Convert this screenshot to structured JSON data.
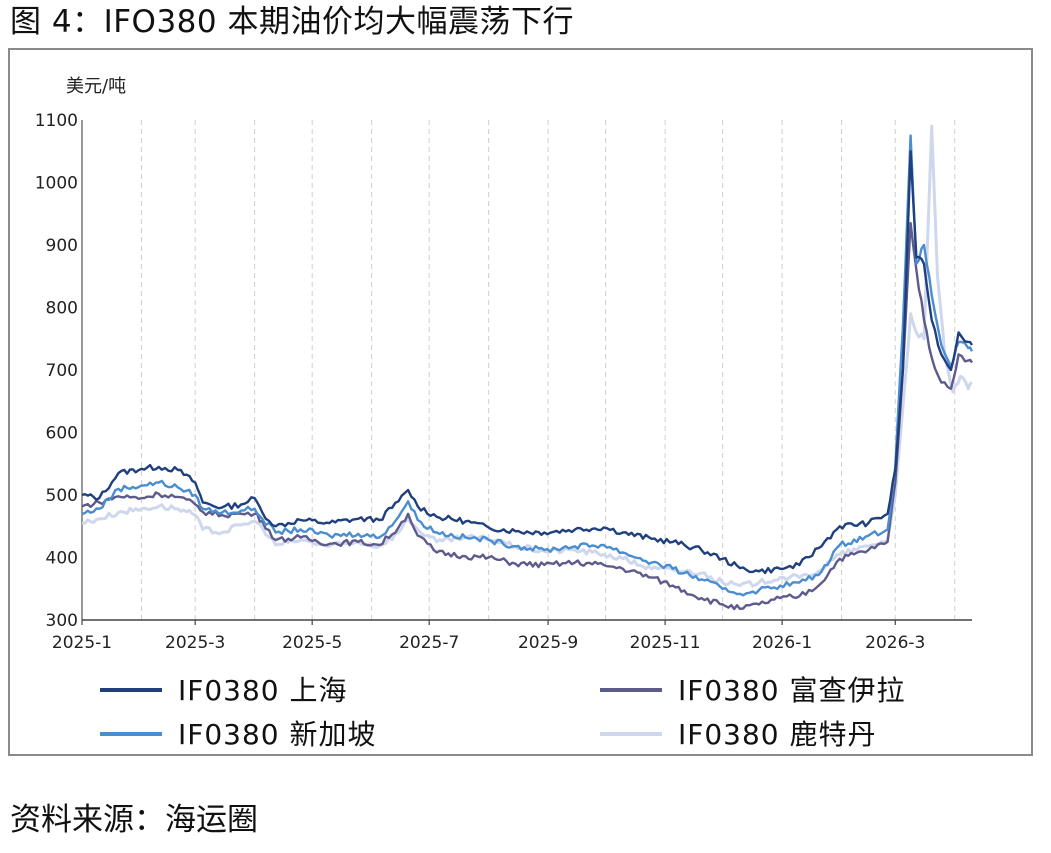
{
  "title": "图 4：IFO380 本期油价均大幅震荡下行",
  "source": "资料来源：海运圈",
  "chart_data": {
    "type": "line",
    "y_unit": "美元/吨",
    "ylim": [
      300,
      1100
    ],
    "y_ticks": [
      "300",
      "400",
      "500",
      "600",
      "700",
      "800",
      "900",
      "1000",
      "1100"
    ],
    "x_tick_labels": [
      "2025-1",
      "2025-3",
      "2025-5",
      "2025-7",
      "2025-9",
      "2025-11",
      "2026-1",
      "2026-3"
    ],
    "x_range": [
      "2025-01-01",
      "2026-04-10"
    ],
    "vertical_grid": "dashed",
    "legend_position": "bottom",
    "series": [
      {
        "name": "IF0380 上海",
        "color": "#1f3f7f",
        "points": [
          [
            "2025-01-01",
            500
          ],
          [
            "2025-01-10",
            495
          ],
          [
            "2025-01-20",
            535
          ],
          [
            "2025-02-01",
            542
          ],
          [
            "2025-02-10",
            545
          ],
          [
            "2025-02-20",
            540
          ],
          [
            "2025-03-01",
            520
          ],
          [
            "2025-03-05",
            488
          ],
          [
            "2025-03-15",
            480
          ],
          [
            "2025-03-25",
            485
          ],
          [
            "2025-04-01",
            495
          ],
          [
            "2025-04-05",
            472
          ],
          [
            "2025-04-12",
            450
          ],
          [
            "2025-04-25",
            460
          ],
          [
            "2025-05-10",
            455
          ],
          [
            "2025-05-25",
            462
          ],
          [
            "2025-06-05",
            460
          ],
          [
            "2025-06-15",
            490
          ],
          [
            "2025-06-20",
            508
          ],
          [
            "2025-06-25",
            482
          ],
          [
            "2025-07-05",
            465
          ],
          [
            "2025-07-20",
            458
          ],
          [
            "2025-08-01",
            448
          ],
          [
            "2025-08-15",
            442
          ],
          [
            "2025-08-30",
            440
          ],
          [
            "2025-09-15",
            445
          ],
          [
            "2025-09-30",
            448
          ],
          [
            "2025-10-10",
            440
          ],
          [
            "2025-10-25",
            430
          ],
          [
            "2025-11-05",
            425
          ],
          [
            "2025-11-20",
            412
          ],
          [
            "2025-12-01",
            398
          ],
          [
            "2025-12-10",
            383
          ],
          [
            "2025-12-20",
            378
          ],
          [
            "2025-12-31",
            382
          ],
          [
            "2026-01-10",
            388
          ],
          [
            "2026-01-20",
            415
          ],
          [
            "2026-01-31",
            450
          ],
          [
            "2026-02-15",
            455
          ],
          [
            "2026-02-25",
            470
          ],
          [
            "2026-03-01",
            540
          ],
          [
            "2026-03-05",
            700
          ],
          [
            "2026-03-09",
            1050
          ],
          [
            "2026-03-12",
            880
          ],
          [
            "2026-03-16",
            870
          ],
          [
            "2026-03-20",
            780
          ],
          [
            "2026-03-25",
            725
          ],
          [
            "2026-03-30",
            700
          ],
          [
            "2026-04-03",
            760
          ],
          [
            "2026-04-08",
            745
          ],
          [
            "2026-04-10",
            740
          ]
        ]
      },
      {
        "name": "IF0380 富查伊拉",
        "color": "#5c5b8c",
        "points": [
          [
            "2025-01-01",
            482
          ],
          [
            "2025-01-10",
            488
          ],
          [
            "2025-01-20",
            498
          ],
          [
            "2025-02-01",
            495
          ],
          [
            "2025-02-10",
            502
          ],
          [
            "2025-02-20",
            497
          ],
          [
            "2025-03-01",
            485
          ],
          [
            "2025-03-05",
            473
          ],
          [
            "2025-03-15",
            468
          ],
          [
            "2025-03-25",
            470
          ],
          [
            "2025-04-01",
            470
          ],
          [
            "2025-04-05",
            458
          ],
          [
            "2025-04-12",
            428
          ],
          [
            "2025-04-25",
            432
          ],
          [
            "2025-05-10",
            422
          ],
          [
            "2025-05-25",
            425
          ],
          [
            "2025-06-05",
            420
          ],
          [
            "2025-06-15",
            448
          ],
          [
            "2025-06-20",
            470
          ],
          [
            "2025-06-25",
            435
          ],
          [
            "2025-07-05",
            408
          ],
          [
            "2025-07-20",
            402
          ],
          [
            "2025-08-01",
            400
          ],
          [
            "2025-08-15",
            390
          ],
          [
            "2025-08-30",
            388
          ],
          [
            "2025-09-15",
            392
          ],
          [
            "2025-09-30",
            388
          ],
          [
            "2025-10-10",
            382
          ],
          [
            "2025-10-25",
            368
          ],
          [
            "2025-11-05",
            355
          ],
          [
            "2025-11-20",
            335
          ],
          [
            "2025-12-01",
            325
          ],
          [
            "2025-12-10",
            318
          ],
          [
            "2025-12-20",
            325
          ],
          [
            "2025-12-31",
            335
          ],
          [
            "2026-01-10",
            338
          ],
          [
            "2026-01-20",
            355
          ],
          [
            "2026-01-31",
            398
          ],
          [
            "2026-02-15",
            412
          ],
          [
            "2026-02-25",
            425
          ],
          [
            "2026-03-01",
            520
          ],
          [
            "2026-03-05",
            700
          ],
          [
            "2026-03-09",
            935
          ],
          [
            "2026-03-12",
            860
          ],
          [
            "2026-03-16",
            780
          ],
          [
            "2026-03-20",
            720
          ],
          [
            "2026-03-25",
            680
          ],
          [
            "2026-03-30",
            670
          ],
          [
            "2026-04-03",
            725
          ],
          [
            "2026-04-08",
            715
          ],
          [
            "2026-04-10",
            712
          ]
        ]
      },
      {
        "name": "IF0380 新加坡",
        "color": "#4a8dd0",
        "points": [
          [
            "2025-01-01",
            470
          ],
          [
            "2025-01-10",
            478
          ],
          [
            "2025-01-20",
            510
          ],
          [
            "2025-02-01",
            515
          ],
          [
            "2025-02-10",
            520
          ],
          [
            "2025-02-20",
            512
          ],
          [
            "2025-03-01",
            500
          ],
          [
            "2025-03-05",
            478
          ],
          [
            "2025-03-15",
            472
          ],
          [
            "2025-03-25",
            475
          ],
          [
            "2025-04-01",
            478
          ],
          [
            "2025-04-05",
            462
          ],
          [
            "2025-04-12",
            440
          ],
          [
            "2025-04-25",
            445
          ],
          [
            "2025-05-10",
            435
          ],
          [
            "2025-05-25",
            438
          ],
          [
            "2025-06-05",
            432
          ],
          [
            "2025-06-15",
            465
          ],
          [
            "2025-06-20",
            490
          ],
          [
            "2025-06-25",
            460
          ],
          [
            "2025-07-05",
            440
          ],
          [
            "2025-07-20",
            432
          ],
          [
            "2025-08-01",
            428
          ],
          [
            "2025-08-15",
            418
          ],
          [
            "2025-08-30",
            412
          ],
          [
            "2025-09-15",
            418
          ],
          [
            "2025-09-30",
            420
          ],
          [
            "2025-10-10",
            408
          ],
          [
            "2025-10-25",
            392
          ],
          [
            "2025-11-05",
            382
          ],
          [
            "2025-11-20",
            365
          ],
          [
            "2025-12-01",
            350
          ],
          [
            "2025-12-10",
            342
          ],
          [
            "2025-12-20",
            348
          ],
          [
            "2025-12-31",
            355
          ],
          [
            "2026-01-10",
            360
          ],
          [
            "2026-01-20",
            372
          ],
          [
            "2026-01-31",
            420
          ],
          [
            "2026-02-15",
            435
          ],
          [
            "2026-02-25",
            445
          ],
          [
            "2026-03-01",
            545
          ],
          [
            "2026-03-05",
            770
          ],
          [
            "2026-03-09",
            1075
          ],
          [
            "2026-03-12",
            870
          ],
          [
            "2026-03-16",
            900
          ],
          [
            "2026-03-20",
            820
          ],
          [
            "2026-03-25",
            740
          ],
          [
            "2026-03-30",
            705
          ],
          [
            "2026-04-03",
            745
          ],
          [
            "2026-04-08",
            735
          ],
          [
            "2026-04-10",
            730
          ]
        ]
      },
      {
        "name": "IF0380 鹿特丹",
        "color": "#cfd7ec",
        "points": [
          [
            "2025-01-01",
            455
          ],
          [
            "2025-01-10",
            462
          ],
          [
            "2025-01-20",
            472
          ],
          [
            "2025-02-01",
            478
          ],
          [
            "2025-02-10",
            482
          ],
          [
            "2025-02-20",
            478
          ],
          [
            "2025-03-01",
            468
          ],
          [
            "2025-03-05",
            445
          ],
          [
            "2025-03-15",
            440
          ],
          [
            "2025-03-25",
            452
          ],
          [
            "2025-04-01",
            458
          ],
          [
            "2025-04-05",
            448
          ],
          [
            "2025-04-12",
            420
          ],
          [
            "2025-04-25",
            428
          ],
          [
            "2025-05-10",
            418
          ],
          [
            "2025-05-25",
            425
          ],
          [
            "2025-06-05",
            418
          ],
          [
            "2025-06-15",
            440
          ],
          [
            "2025-06-20",
            462
          ],
          [
            "2025-06-25",
            445
          ],
          [
            "2025-07-05",
            425
          ],
          [
            "2025-07-20",
            432
          ],
          [
            "2025-08-01",
            430
          ],
          [
            "2025-08-15",
            418
          ],
          [
            "2025-08-30",
            410
          ],
          [
            "2025-09-15",
            412
          ],
          [
            "2025-09-30",
            405
          ],
          [
            "2025-10-10",
            398
          ],
          [
            "2025-10-25",
            382
          ],
          [
            "2025-11-05",
            380
          ],
          [
            "2025-11-20",
            375
          ],
          [
            "2025-12-01",
            360
          ],
          [
            "2025-12-10",
            355
          ],
          [
            "2025-12-20",
            360
          ],
          [
            "2025-12-31",
            368
          ],
          [
            "2026-01-10",
            368
          ],
          [
            "2026-01-20",
            378
          ],
          [
            "2026-01-31",
            405
          ],
          [
            "2026-02-15",
            418
          ],
          [
            "2026-02-25",
            428
          ],
          [
            "2026-03-01",
            500
          ],
          [
            "2026-03-05",
            640
          ],
          [
            "2026-03-09",
            790
          ],
          [
            "2026-03-12",
            760
          ],
          [
            "2026-03-16",
            750
          ],
          [
            "2026-03-20",
            1090
          ],
          [
            "2026-03-23",
            850
          ],
          [
            "2026-03-27",
            720
          ],
          [
            "2026-03-31",
            665
          ],
          [
            "2026-04-04",
            690
          ],
          [
            "2026-04-08",
            670
          ],
          [
            "2026-04-10",
            680
          ]
        ]
      }
    ]
  }
}
